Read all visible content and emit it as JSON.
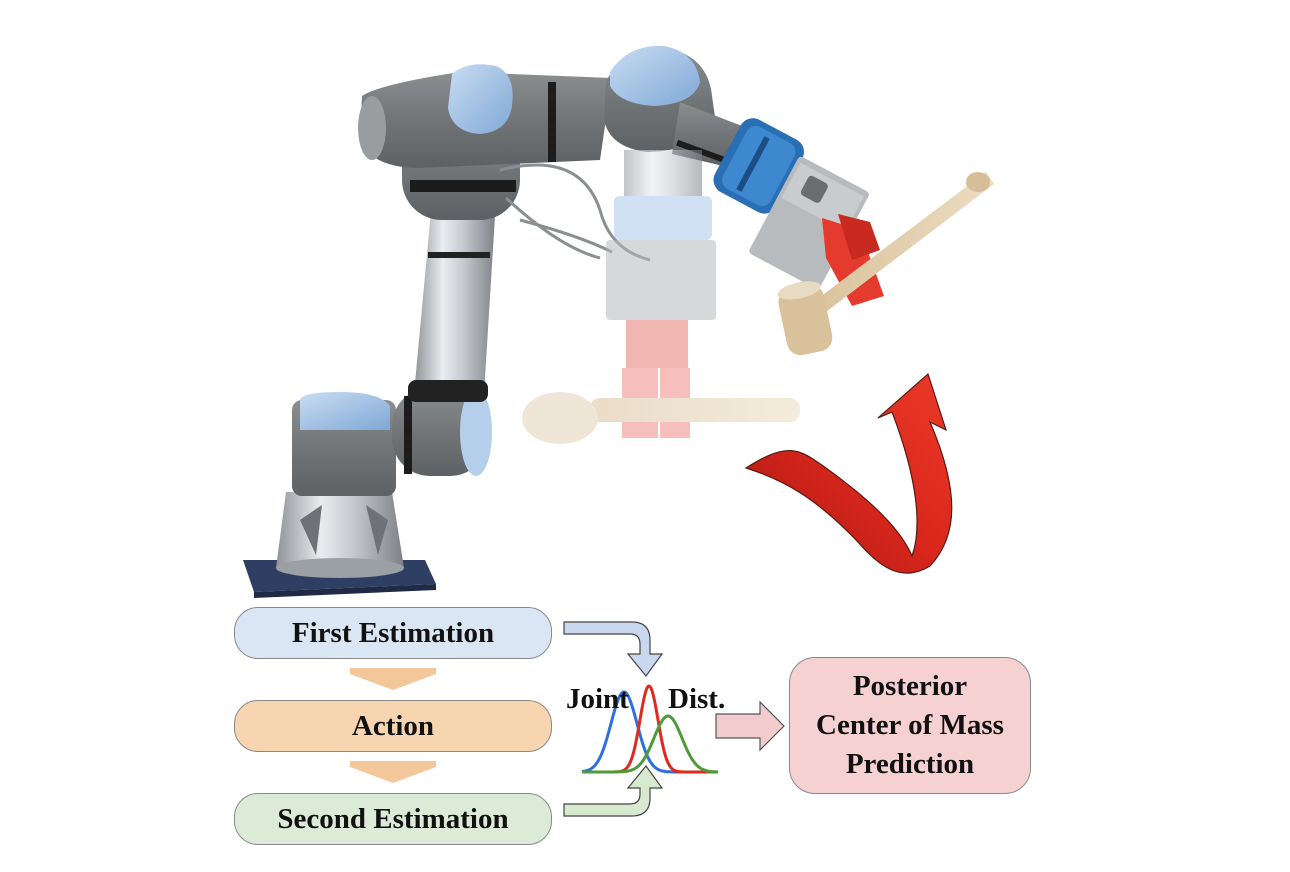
{
  "flow": {
    "first_estimation": "First Estimation",
    "action": "Action",
    "second_estimation": "Second Estimation"
  },
  "distribution": {
    "joint_label": "Joint",
    "dist_label": "Dist.",
    "curves": [
      {
        "color": "#2d6fe0"
      },
      {
        "color": "#e02a20"
      },
      {
        "color": "#4f9a3a"
      }
    ]
  },
  "output": {
    "line1": "Posterior",
    "line2": "Center of Mass",
    "line3": "Prediction"
  },
  "colors": {
    "first_box": "#dbe6f4",
    "action_box": "#f7d5b1",
    "second_box": "#dcebd7",
    "posterior_box": "#f5d1d1",
    "rotation_arrow": "#d8261c"
  }
}
